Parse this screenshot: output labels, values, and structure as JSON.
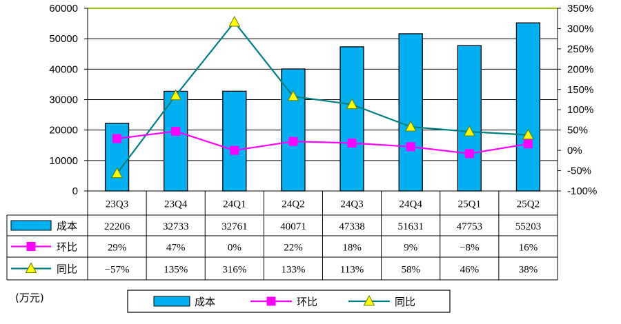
{
  "chart_data": {
    "type": "bar+line",
    "categories": [
      "23Q3",
      "23Q4",
      "24Q1",
      "24Q2",
      "24Q3",
      "24Q4",
      "25Q1",
      "25Q2"
    ],
    "series": [
      {
        "name": "成本",
        "kind": "bar",
        "axis": "left",
        "values": [
          22206,
          32733,
          32761,
          40071,
          47338,
          51631,
          47753,
          55203
        ],
        "labels": [
          "22206",
          "32733",
          "32761",
          "40071",
          "47338",
          "51631",
          "47753",
          "55203"
        ]
      },
      {
        "name": "环比",
        "kind": "line",
        "axis": "right",
        "unit": "%",
        "values": [
          29,
          47,
          0,
          22,
          18,
          9,
          -8,
          16
        ],
        "labels": [
          "29%",
          "47%",
          "0%",
          "22%",
          "18%",
          "9%",
          "−8%",
          "16%"
        ]
      },
      {
        "name": "同比",
        "kind": "line",
        "axis": "right",
        "unit": "%",
        "values": [
          -57,
          135,
          316,
          133,
          113,
          58,
          46,
          38
        ],
        "labels": [
          "−57%",
          "135%",
          "316%",
          "133%",
          "113%",
          "58%",
          "46%",
          "38%"
        ]
      }
    ],
    "ylim": [
      0,
      60000
    ],
    "y_ticks": [
      "60000",
      "50000",
      "40000",
      "30000",
      "20000",
      "10000",
      "0"
    ],
    "y2lim": [
      -100,
      350
    ],
    "y2_ticks": [
      "350%",
      "300%",
      "250%",
      "200%",
      "150%",
      "100%",
      "50%",
      "0%",
      "-50%",
      "-100%"
    ],
    "unit_label": "(万元)",
    "legend": [
      "成本",
      "环比",
      "同比"
    ],
    "legend_position": "bottom",
    "colors": {
      "bar": "#00b0f0",
      "qoq": "#ff00ff",
      "yoy": "#008080",
      "yoy_marker": "#ffff00",
      "grid": "#000000",
      "top_border": "#99cc00"
    }
  }
}
